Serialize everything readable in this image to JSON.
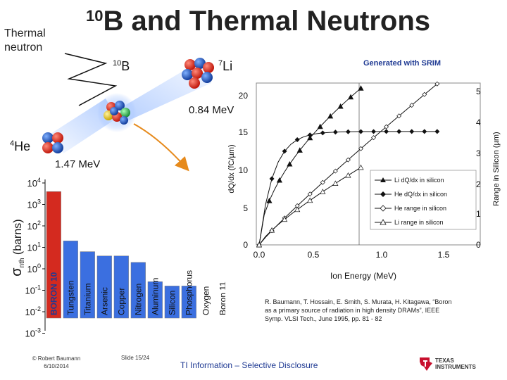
{
  "header": {
    "title_sup": "10",
    "title_main": "B and Thermal Neutrons",
    "thermal_line1": "Thermal",
    "thermal_line2": "neutron"
  },
  "reaction": {
    "b10_sup": "10",
    "b10_sym": "B",
    "li7_sup": "7",
    "li7_sym": "Li",
    "li_energy": "0.84 MeV",
    "he4_sup": "4",
    "he4_sym": "He",
    "he_energy": "1.47 MeV"
  },
  "srim": {
    "note": "Generated with SRIM",
    "xlabel": "Ion Energy (MeV)",
    "ylabel_left": "dQ/dx (fC/µm)",
    "ylabel_right": "Range in Silicon (µm)",
    "x_ticks": [
      "0.0",
      "0.5",
      "1.0",
      "1.5"
    ],
    "y_left_ticks": [
      "0",
      "5",
      "10",
      "15",
      "20"
    ],
    "y_right_ticks": [
      "0",
      "1",
      "2",
      "3",
      "4",
      "5"
    ],
    "legend": [
      "Li dQ/dx in silicon",
      "He dQ/dx in silicon",
      "He range in silicon",
      "Li range in silicon"
    ]
  },
  "xsection": {
    "ylabel_sym": "σ",
    "ylabel_sub": "nth",
    "ylabel_unit": " (barns)",
    "y_ticks": [
      {
        "base": "10",
        "exp": "4"
      },
      {
        "base": "10",
        "exp": "3"
      },
      {
        "base": "10",
        "exp": "2"
      },
      {
        "base": "10",
        "exp": "1"
      },
      {
        "base": "10",
        "exp": "0"
      },
      {
        "base": "10",
        "exp": "-1"
      },
      {
        "base": "10",
        "exp": "-2"
      },
      {
        "base": "10",
        "exp": "-3"
      }
    ],
    "bars": [
      {
        "label": "BORON 10",
        "exp_value": 3.6,
        "color": "#d42a1f",
        "text_color": "#1f3a93"
      },
      {
        "label": "Tungsten",
        "exp_value": 1.3,
        "color": "#3b6fe0",
        "text_color": "#111111"
      },
      {
        "label": "Titanium",
        "exp_value": 0.8,
        "color": "#3b6fe0",
        "text_color": "#111111"
      },
      {
        "label": "Arsenic",
        "exp_value": 0.6,
        "color": "#3b6fe0",
        "text_color": "#111111"
      },
      {
        "label": "Copper",
        "exp_value": 0.6,
        "color": "#3b6fe0",
        "text_color": "#111111"
      },
      {
        "label": "Nitrogen",
        "exp_value": 0.3,
        "color": "#3b6fe0",
        "text_color": "#111111"
      },
      {
        "label": "Aluminum",
        "exp_value": -0.6,
        "color": "#3b6fe0",
        "text_color": "#111111"
      },
      {
        "label": "Silicon",
        "exp_value": -0.8,
        "color": "#3b6fe0",
        "text_color": "#111111"
      },
      {
        "label": "Phosphorus",
        "exp_value": -0.8,
        "color": "#3b6fe0",
        "text_color": "#111111"
      },
      {
        "label": "Oxygen",
        "exp_value": -3.7,
        "color": "#3b6fe0",
        "text_color": "#111111"
      },
      {
        "label": "Boron 11",
        "exp_value": -2.3,
        "color": "#3b6fe0",
        "text_color": "#111111"
      }
    ]
  },
  "reference": "R. Baumann, T. Hossain, E. Smith, S. Murata, H. Kitagawa, “Boron as a primary source of radiation in high density DRAMs”, IEEE Symp. VLSI Tech., June 1995, pp. 81 - 82",
  "footer": {
    "author_line1": "© Robert Baumann",
    "author_line2": "6/10/2014",
    "slide": "Slide  15/24",
    "disclosure": "TI Information – Selective Disclosure",
    "ti_line1": "TEXAS",
    "ti_line2": "INSTRUMENTS"
  },
  "colors": {
    "boron_bar": "#d42a1f",
    "element_bar": "#3b6fe0",
    "disclosure_text": "#1f3a93",
    "ti_red": "#c8102e"
  }
}
